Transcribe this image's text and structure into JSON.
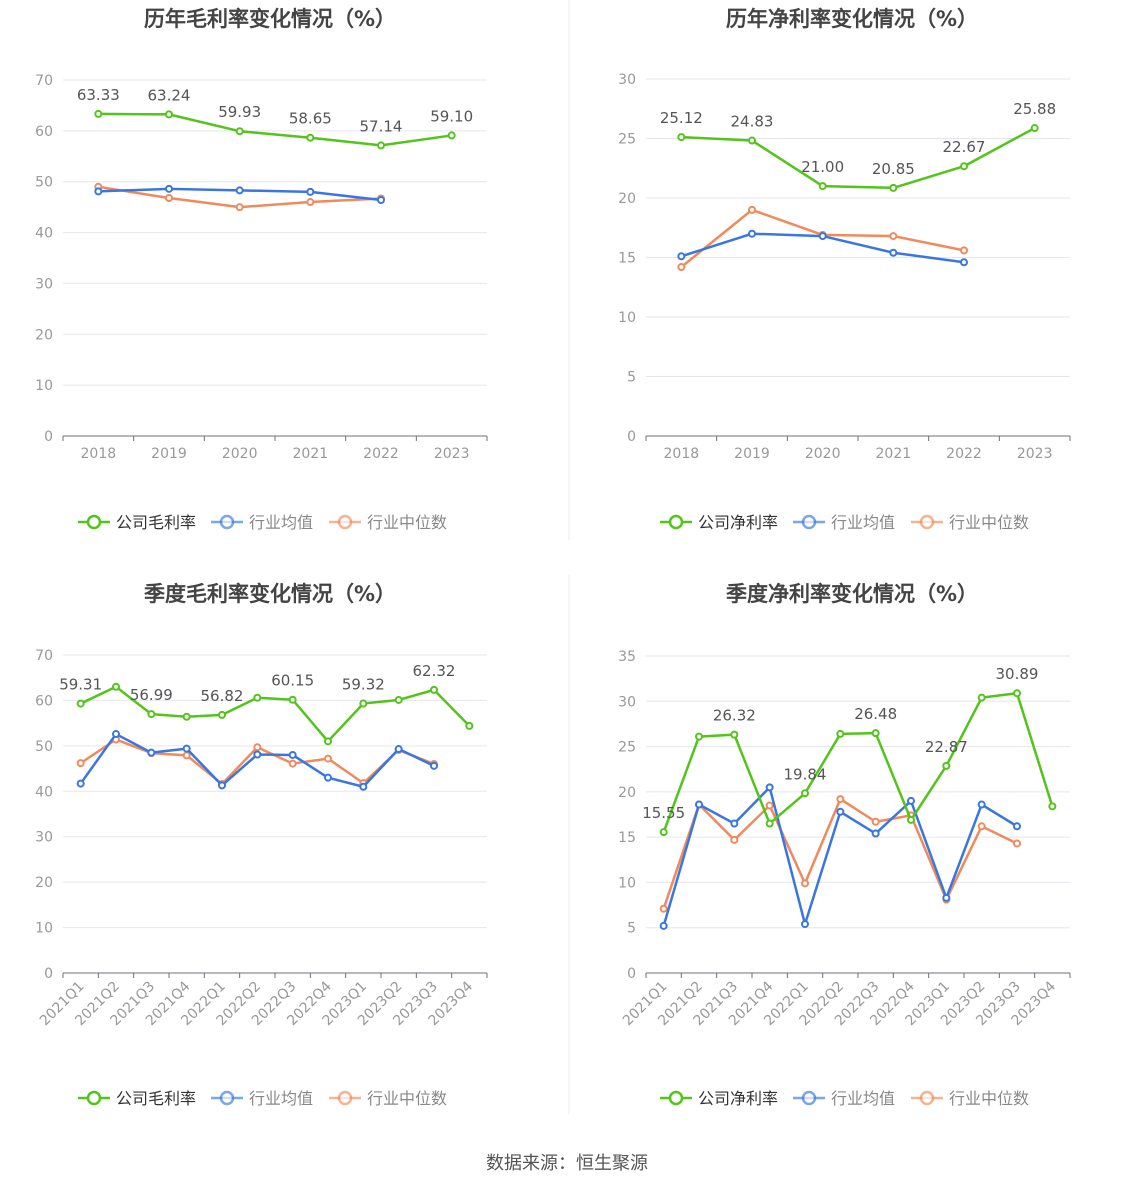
{
  "source": "数据来源：恒生聚源",
  "legend_labels": {
    "industry_avg": "行业均值",
    "industry_median": "行业中位数"
  },
  "colors": {
    "company": "#52c41a",
    "industry_avg": "#3a76e0",
    "industry_median": "#f08a5d",
    "grid": "#e6e6ee",
    "axis": "#6e7079",
    "tick": "#999999",
    "title": "#444444",
    "label": "#555555"
  },
  "chart_data": [
    {
      "type": "line",
      "title": "历年毛利率变化情况（%）",
      "categories": [
        "2018",
        "2019",
        "2020",
        "2021",
        "2022",
        "2023"
      ],
      "ylim": [
        0,
        70
      ],
      "yticks": [
        0,
        10,
        20,
        30,
        40,
        50,
        60,
        70
      ],
      "series": [
        {
          "name": "公司毛利率",
          "key": "company",
          "values": [
            63.33,
            63.24,
            59.93,
            58.65,
            57.14,
            59.1
          ],
          "labels": [
            "63.33",
            "63.24",
            "59.93",
            "58.65",
            "57.14",
            "59.10"
          ]
        },
        {
          "name": "行业均值",
          "key": "industry_avg",
          "values": [
            48.1,
            48.6,
            48.3,
            48.0,
            46.4,
            null
          ]
        },
        {
          "name": "行业中位数",
          "key": "industry_median",
          "values": [
            49.0,
            46.8,
            45.0,
            46.0,
            46.7,
            null
          ]
        }
      ],
      "grid": true,
      "legend": "bottom"
    },
    {
      "type": "line",
      "title": "历年净利率变化情况（%）",
      "categories": [
        "2018",
        "2019",
        "2020",
        "2021",
        "2022",
        "2023"
      ],
      "ylim": [
        0,
        30
      ],
      "yticks": [
        0,
        5,
        10,
        15,
        20,
        25,
        30
      ],
      "series": [
        {
          "name": "公司净利率",
          "key": "company",
          "values": [
            25.12,
            24.83,
            21.0,
            20.85,
            22.67,
            25.88
          ],
          "labels": [
            "25.12",
            "24.83",
            "21.00",
            "20.85",
            "22.67",
            "25.88"
          ]
        },
        {
          "name": "行业均值",
          "key": "industry_avg",
          "values": [
            15.1,
            17.0,
            16.8,
            15.4,
            14.6,
            null
          ]
        },
        {
          "name": "行业中位数",
          "key": "industry_median",
          "values": [
            14.2,
            19.0,
            16.9,
            16.8,
            15.6,
            null
          ]
        }
      ],
      "grid": true,
      "legend": "bottom"
    },
    {
      "type": "line",
      "title": "季度毛利率变化情况（%）",
      "categories": [
        "2021Q1",
        "2021Q2",
        "2021Q3",
        "2021Q4",
        "2022Q1",
        "2022Q2",
        "2022Q3",
        "2022Q4",
        "2023Q1",
        "2023Q2",
        "2023Q3",
        "2023Q4"
      ],
      "ylim": [
        0,
        70
      ],
      "yticks": [
        0,
        10,
        20,
        30,
        40,
        50,
        60,
        70
      ],
      "series": [
        {
          "name": "公司毛利率",
          "key": "company",
          "values": [
            59.31,
            63.0,
            56.99,
            56.4,
            56.82,
            60.6,
            60.15,
            51.0,
            59.32,
            60.1,
            62.32,
            54.4
          ],
          "labels": [
            "59.31",
            "",
            "56.99",
            "",
            "56.82",
            "",
            "60.15",
            "",
            "59.32",
            "",
            "62.32",
            ""
          ]
        },
        {
          "name": "行业均值",
          "key": "industry_avg",
          "values": [
            41.7,
            52.6,
            48.5,
            49.4,
            41.3,
            48.1,
            48.0,
            43.0,
            41.0,
            49.3,
            45.6,
            null
          ]
        },
        {
          "name": "行业中位数",
          "key": "industry_median",
          "values": [
            46.2,
            51.4,
            48.4,
            47.9,
            41.6,
            49.7,
            46.1,
            47.2,
            41.8,
            49.1,
            46.0,
            null
          ]
        }
      ],
      "grid": true,
      "legend": "bottom"
    },
    {
      "type": "line",
      "title": "季度净利率变化情况（%）",
      "categories": [
        "2021Q1",
        "2021Q2",
        "2021Q3",
        "2021Q4",
        "2022Q1",
        "2022Q2",
        "2022Q3",
        "2022Q4",
        "2023Q1",
        "2023Q2",
        "2023Q3",
        "2023Q4"
      ],
      "ylim": [
        0,
        35
      ],
      "yticks": [
        0,
        5,
        10,
        15,
        20,
        25,
        30,
        35
      ],
      "series": [
        {
          "name": "公司净利率",
          "key": "company",
          "values": [
            15.55,
            26.1,
            26.32,
            16.5,
            19.84,
            26.4,
            26.48,
            16.9,
            22.87,
            30.4,
            30.89,
            18.4
          ],
          "labels": [
            "15.55",
            "",
            "26.32",
            "",
            "19.84",
            "",
            "26.48",
            "",
            "22.87",
            "",
            "30.89",
            ""
          ]
        },
        {
          "name": "行业均值",
          "key": "industry_avg",
          "values": [
            5.2,
            18.6,
            16.5,
            20.5,
            5.4,
            17.8,
            15.4,
            19.0,
            8.3,
            18.6,
            16.2,
            null
          ]
        },
        {
          "name": "行业中位数",
          "key": "industry_median",
          "values": [
            7.1,
            18.6,
            14.7,
            18.5,
            9.9,
            19.2,
            16.7,
            17.4,
            8.1,
            16.2,
            14.3,
            null
          ]
        }
      ],
      "grid": true,
      "legend": "bottom"
    }
  ]
}
